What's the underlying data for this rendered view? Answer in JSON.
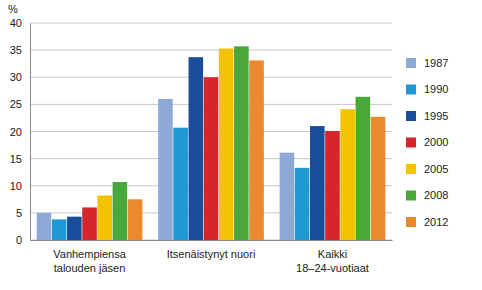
{
  "chart_data": {
    "type": "bar",
    "y_label": "%",
    "categories": [
      "Vanhempiensa talouden jäsen",
      "Itsenäistynyt nuori",
      "Kaikki 18–24-vuotiaat"
    ],
    "series": [
      {
        "name": "1987",
        "color": "#8fa9d6",
        "values": [
          5.0,
          26.0,
          16.1
        ]
      },
      {
        "name": "1990",
        "color": "#1f98d4",
        "values": [
          3.8,
          20.7,
          13.3
        ]
      },
      {
        "name": "1995",
        "color": "#1a4e9b",
        "values": [
          4.3,
          33.7,
          21.0
        ]
      },
      {
        "name": "2000",
        "color": "#d6262b",
        "values": [
          6.0,
          30.0,
          20.1
        ]
      },
      {
        "name": "2005",
        "color": "#f4c300",
        "values": [
          8.2,
          35.3,
          24.1
        ]
      },
      {
        "name": "2008",
        "color": "#4aa83b",
        "values": [
          10.7,
          35.7,
          26.4
        ]
      },
      {
        "name": "2012",
        "color": "#e88a2d",
        "values": [
          7.5,
          33.1,
          22.7
        ]
      }
    ],
    "ylim": [
      0,
      40
    ],
    "yticks": [
      0,
      5,
      10,
      15,
      20,
      25,
      30,
      35,
      40
    ],
    "grid": true,
    "legend": "right"
  }
}
